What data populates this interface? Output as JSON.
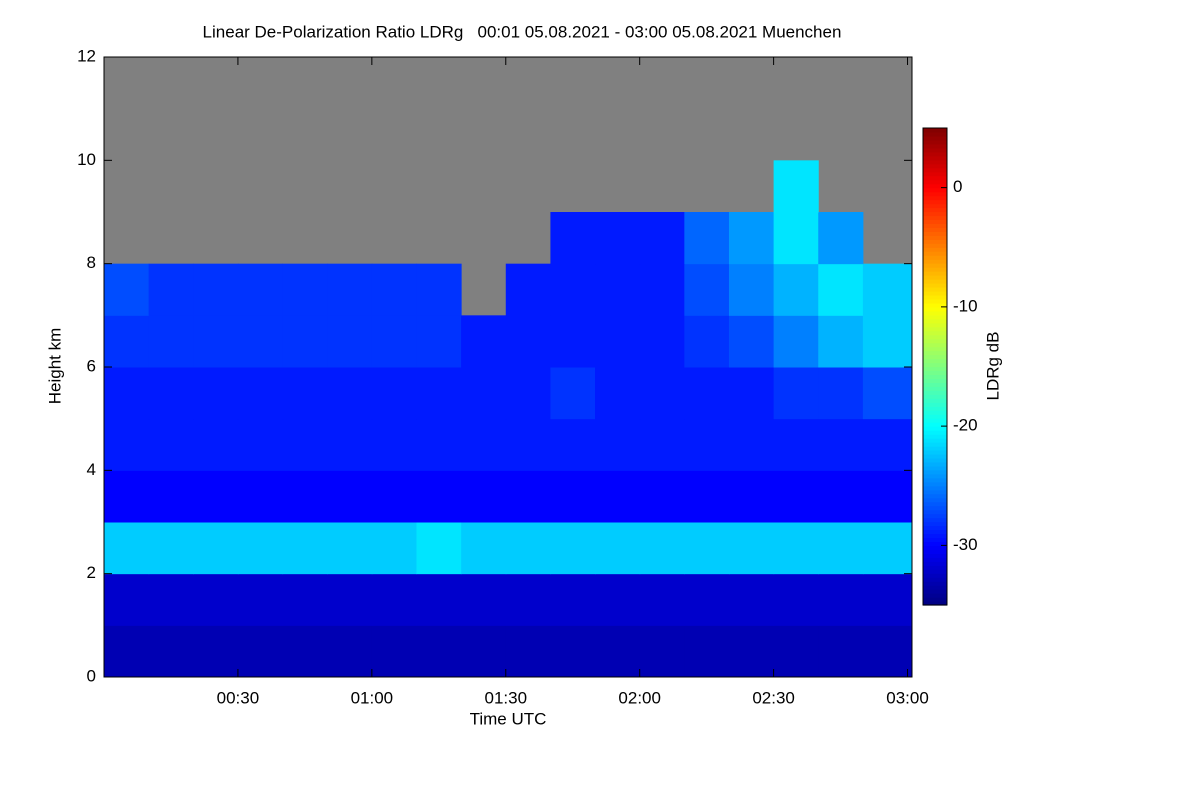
{
  "chart_data": {
    "type": "heatmap",
    "title": "Linear De-Polarization Ratio LDRg   00:01 05.08.2021 - 03:00 05.08.2021 Muenchen",
    "x_label": "Time UTC",
    "y_label": "Height km",
    "colorbar_label": "LDRg dB",
    "xlim": [
      0,
      181
    ],
    "ylim": [
      0,
      12
    ],
    "zlim": [
      -35,
      5
    ],
    "xticks": [
      {
        "value": 30,
        "label": "00:30"
      },
      {
        "value": 60,
        "label": "01:00"
      },
      {
        "value": 90,
        "label": "01:30"
      },
      {
        "value": 120,
        "label": "02:00"
      },
      {
        "value": 150,
        "label": "02:30"
      },
      {
        "value": 180,
        "label": "03:00"
      }
    ],
    "yticks": [
      0,
      2,
      4,
      6,
      8,
      10,
      12
    ],
    "zticks": [
      0,
      -10,
      -20,
      -30
    ],
    "x_edges": [
      0,
      10,
      20,
      30,
      40,
      50,
      60,
      70,
      80,
      90,
      100,
      110,
      120,
      130,
      140,
      150,
      160,
      170,
      181
    ],
    "y_edges": [
      0,
      1,
      2,
      3,
      4,
      5,
      6,
      7,
      8,
      9,
      10,
      11,
      12
    ],
    "no_data_color": "#808080",
    "z": [
      [
        -33,
        -33,
        -33,
        -33,
        -33,
        -33,
        -33,
        -33,
        -33,
        -33,
        -33,
        -33,
        -33,
        -33,
        -33,
        -33,
        -33,
        -33
      ],
      [
        -32,
        -32,
        -32,
        -32,
        -32,
        -32,
        -32,
        -32,
        -32,
        -32,
        -32,
        -32,
        -32,
        -32,
        -32,
        -32,
        -32,
        -32
      ],
      [
        -22,
        -22,
        -22,
        -22,
        -22,
        -22,
        -22,
        -21,
        -22,
        -22,
        -22,
        -22,
        -22,
        -22,
        -22,
        -22,
        -22,
        -22
      ],
      [
        -30,
        -30,
        -30,
        -30,
        -30,
        -30,
        -30,
        -30,
        -30,
        -30,
        -30,
        -30,
        -30,
        -30,
        -30,
        -30,
        -30,
        -30
      ],
      [
        -29,
        -29,
        -29,
        -29,
        -29,
        -29,
        -29,
        -29,
        -29,
        -29,
        -29,
        -29,
        -29,
        -29,
        -29,
        -29,
        -29,
        -29
      ],
      [
        -29,
        -29,
        -29,
        -29,
        -29,
        -29,
        -29,
        -29,
        -29,
        -29,
        -28,
        -29,
        -29,
        -29,
        -29,
        -28,
        -28,
        -27
      ],
      [
        -28,
        -28,
        -28,
        -28,
        -28,
        -28,
        -28,
        -28,
        -29,
        -29,
        -29,
        -29,
        -29,
        -28,
        -27,
        -25,
        -23,
        -22
      ],
      [
        -27,
        -28,
        -28,
        -28,
        -28,
        -28,
        -28,
        -28,
        null,
        -29,
        -29,
        -29,
        -29,
        -27,
        -25,
        -23,
        -21,
        -22
      ],
      [
        null,
        null,
        null,
        null,
        null,
        null,
        null,
        null,
        null,
        null,
        -29,
        -29,
        -29,
        -26,
        -24,
        -21,
        -24,
        null
      ],
      [
        null,
        null,
        null,
        null,
        null,
        null,
        null,
        null,
        null,
        null,
        null,
        null,
        null,
        null,
        null,
        -21,
        null,
        null
      ],
      [
        null,
        null,
        null,
        null,
        null,
        null,
        null,
        null,
        null,
        null,
        null,
        null,
        null,
        null,
        null,
        null,
        null,
        null
      ],
      [
        null,
        null,
        null,
        null,
        null,
        null,
        null,
        null,
        null,
        null,
        null,
        null,
        null,
        null,
        null,
        null,
        null,
        null
      ]
    ]
  }
}
